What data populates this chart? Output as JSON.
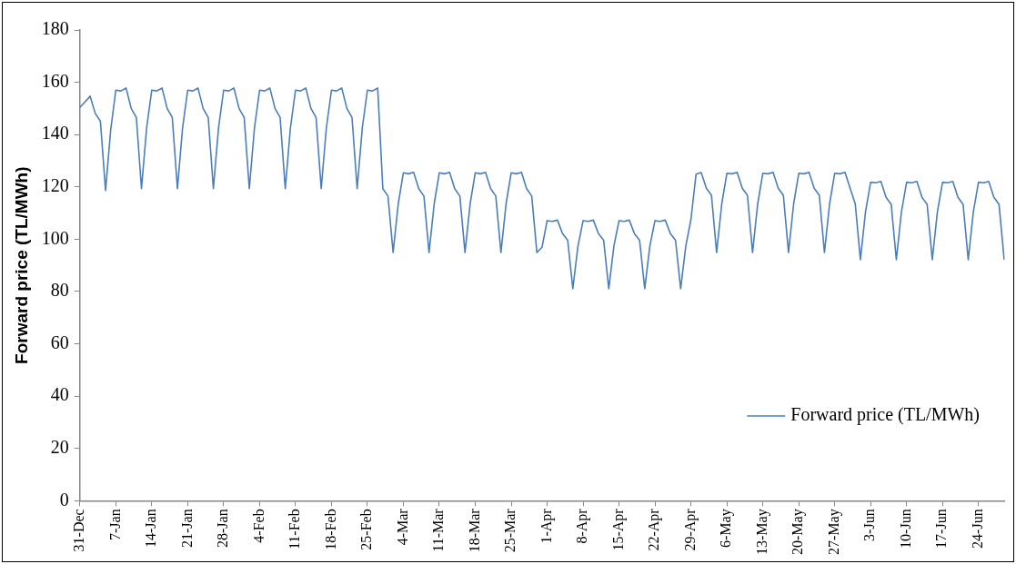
{
  "chart_data": {
    "type": "line",
    "ylabel": "Forward price (TL/MWh)",
    "ylim": [
      0,
      180
    ],
    "yticks": [
      0,
      20,
      40,
      60,
      80,
      100,
      120,
      140,
      160,
      180
    ],
    "grid": false,
    "legend": "right",
    "marker": "none",
    "line_style": "solid",
    "categories": [
      "31-Dec",
      null,
      null,
      null,
      null,
      null,
      null,
      "7-Jan",
      null,
      null,
      null,
      null,
      null,
      null,
      "14-Jan",
      null,
      null,
      null,
      null,
      null,
      null,
      "21-Jan",
      null,
      null,
      null,
      null,
      null,
      null,
      "28-Jan",
      null,
      null,
      null,
      null,
      null,
      null,
      "4-Feb",
      null,
      null,
      null,
      null,
      null,
      null,
      "11-Feb",
      null,
      null,
      null,
      null,
      null,
      null,
      "18-Feb",
      null,
      null,
      null,
      null,
      null,
      null,
      "25-Feb",
      null,
      null,
      null,
      null,
      null,
      null,
      "4-Mar",
      null,
      null,
      null,
      null,
      null,
      null,
      "11-Mar",
      null,
      null,
      null,
      null,
      null,
      null,
      "18-Mar",
      null,
      null,
      null,
      null,
      null,
      null,
      "25-Mar",
      null,
      null,
      null,
      null,
      null,
      null,
      "1-Apr",
      null,
      null,
      null,
      null,
      null,
      null,
      "8-Apr",
      null,
      null,
      null,
      null,
      null,
      null,
      "15-Apr",
      null,
      null,
      null,
      null,
      null,
      null,
      "22-Apr",
      null,
      null,
      null,
      null,
      null,
      null,
      "29-Apr",
      null,
      null,
      null,
      null,
      null,
      null,
      "6-May",
      null,
      null,
      null,
      null,
      null,
      null,
      "13-May",
      null,
      null,
      null,
      null,
      null,
      null,
      "20-May",
      null,
      null,
      null,
      null,
      null,
      null,
      "27-May",
      null,
      null,
      null,
      null,
      null,
      null,
      "3-Jun",
      null,
      null,
      null,
      null,
      null,
      null,
      "10-Jun",
      null,
      null,
      null,
      null,
      null,
      null,
      "17-Jun",
      null,
      null,
      null,
      null,
      null,
      null,
      "24-Jun",
      null,
      null,
      null,
      null,
      null
    ],
    "series": [
      {
        "name": "Forward price (TL/MWh)",
        "color": "#4a7ebb",
        "values": [
          150.4,
          152.5,
          154.7,
          148.1,
          145.1,
          118.6,
          141.7,
          157.0,
          156.7,
          157.8,
          150.0,
          146.5,
          119.3,
          142.5,
          157.0,
          156.7,
          157.8,
          150.0,
          146.5,
          119.3,
          142.5,
          157.0,
          156.7,
          157.8,
          150.0,
          146.5,
          119.3,
          142.5,
          157.0,
          156.7,
          157.8,
          150.0,
          146.5,
          119.3,
          142.5,
          157.0,
          156.7,
          157.8,
          150.0,
          146.5,
          119.3,
          142.5,
          157.0,
          156.7,
          157.8,
          150.0,
          146.5,
          119.3,
          142.5,
          157.0,
          156.7,
          157.8,
          150.0,
          146.5,
          119.3,
          142.5,
          157.0,
          156.7,
          157.8,
          119.3,
          116.5,
          94.9,
          113.5,
          125.4,
          125.0,
          125.6,
          119.3,
          116.5,
          94.9,
          113.5,
          125.4,
          125.0,
          125.6,
          119.3,
          116.5,
          94.9,
          113.5,
          125.4,
          125.0,
          125.6,
          119.3,
          116.5,
          94.9,
          113.5,
          125.4,
          125.0,
          125.6,
          119.3,
          116.5,
          94.9,
          96.9,
          107.1,
          106.8,
          107.3,
          102.1,
          99.6,
          81.1,
          97.4,
          107.1,
          106.8,
          107.3,
          102.1,
          99.6,
          81.1,
          97.4,
          107.1,
          106.8,
          107.3,
          102.1,
          99.6,
          81.1,
          97.4,
          107.1,
          106.8,
          107.3,
          102.1,
          99.6,
          81.1,
          97.4,
          107.5,
          124.9,
          125.5,
          119.5,
          116.8,
          94.9,
          113.5,
          125.2,
          125.0,
          125.6,
          119.5,
          116.8,
          94.9,
          113.5,
          125.2,
          125.0,
          125.6,
          119.5,
          116.8,
          94.9,
          113.5,
          125.2,
          125.0,
          125.6,
          119.5,
          116.8,
          94.9,
          113.5,
          125.2,
          125.0,
          125.6,
          119.5,
          113.5,
          92.2,
          110.5,
          121.8,
          121.6,
          122.1,
          116.0,
          113.3,
          92.2,
          110.5,
          121.8,
          121.6,
          122.1,
          116.0,
          113.3,
          92.2,
          110.5,
          121.8,
          121.6,
          122.1,
          116.0,
          113.3,
          92.2,
          110.5,
          121.8,
          121.6,
          122.1,
          116.0,
          113.3,
          92.2
        ]
      }
    ]
  }
}
